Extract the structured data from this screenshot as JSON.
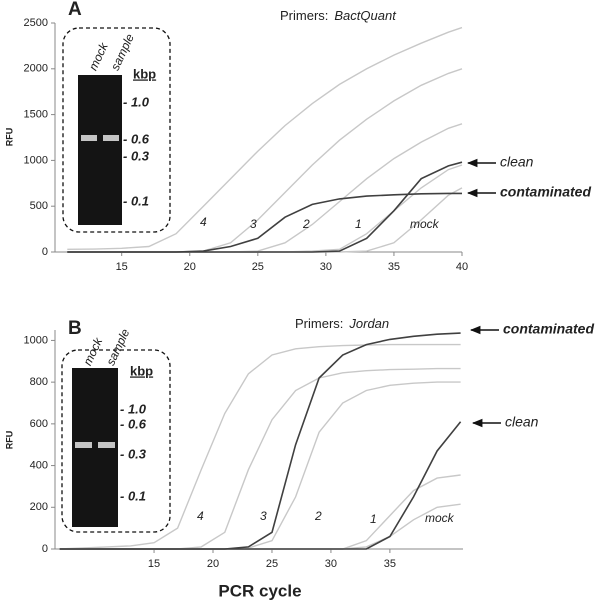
{
  "chart_data": [
    {
      "type": "line",
      "panel": "A",
      "primers_label": "Primers:",
      "primers": "BactQuant",
      "y_label": "RFU",
      "gel_lanes": [
        "mock",
        "sample"
      ],
      "gel_unit": "kbp",
      "gel_markers": [
        "- 1.0",
        "- 0.6",
        "- 0.3",
        "- 0.1"
      ],
      "xlim": [
        10.1,
        40
      ],
      "xticks": [
        15,
        20,
        25,
        30,
        35,
        40
      ],
      "ylim": [
        0,
        2500
      ],
      "yticks": [
        0,
        500,
        1000,
        1500,
        2000,
        2500
      ],
      "x": [
        11,
        13,
        15,
        17,
        19,
        21,
        23,
        25,
        27,
        29,
        31,
        33,
        35,
        37,
        39,
        40
      ],
      "series": [
        {
          "name": "4",
          "color": "#c8c8c8",
          "values": [
            30,
            32,
            40,
            60,
            200,
            500,
            800,
            1100,
            1380,
            1620,
            1830,
            2000,
            2150,
            2280,
            2400,
            2450
          ]
        },
        {
          "name": "3",
          "color": "#c8c8c8",
          "values": [
            0,
            0,
            0,
            0,
            0,
            10,
            100,
            350,
            650,
            950,
            1220,
            1450,
            1650,
            1820,
            1950,
            2000
          ]
        },
        {
          "name": "2",
          "color": "#c8c8c8",
          "values": [
            0,
            0,
            0,
            0,
            0,
            0,
            0,
            10,
            100,
            300,
            550,
            800,
            1020,
            1200,
            1350,
            1400
          ]
        },
        {
          "name": "1",
          "color": "#c8c8c8",
          "values": [
            0,
            0,
            0,
            0,
            0,
            0,
            0,
            0,
            0,
            10,
            30,
            200,
            450,
            700,
            900,
            950
          ]
        },
        {
          "name": "mock",
          "color": "#c8c8c8",
          "values": [
            0,
            0,
            0,
            0,
            0,
            0,
            0,
            0,
            0,
            0,
            0,
            10,
            100,
            350,
            620,
            700
          ]
        },
        {
          "name": "clean",
          "color": "#404040",
          "values": [
            0,
            0,
            0,
            0,
            0,
            0,
            0,
            0,
            0,
            0,
            10,
            150,
            450,
            800,
            940,
            980
          ]
        },
        {
          "name": "contaminated",
          "color": "#404040",
          "values": [
            0,
            0,
            0,
            0,
            0,
            10,
            60,
            150,
            380,
            520,
            580,
            610,
            625,
            635,
            640,
            640
          ]
        }
      ]
    },
    {
      "type": "line",
      "panel": "B",
      "primers_label": "Primers:",
      "primers": "Jordan",
      "y_label": "RFU",
      "x_label": "PCR cycle",
      "gel_lanes": [
        "mock",
        "sample"
      ],
      "gel_unit": "kbp",
      "gel_markers": [
        "- 1.0",
        "- 0.6",
        "- 0.3",
        "- 0.1"
      ],
      "xlim": [
        6.6,
        41.2
      ],
      "xticks": [
        15,
        20,
        25,
        30,
        35
      ],
      "ylim": [
        0,
        1050
      ],
      "yticks": [
        0,
        200,
        400,
        600,
        800,
        1000
      ],
      "x": [
        7,
        9,
        11,
        13,
        15,
        17,
        19,
        21,
        23,
        25,
        27,
        29,
        31,
        33,
        35,
        37,
        39,
        41
      ],
      "series": [
        {
          "name": "4",
          "color": "#c8c8c8",
          "values": [
            0,
            5,
            10,
            15,
            30,
            100,
            380,
            650,
            840,
            930,
            960,
            970,
            975,
            978,
            980,
            980,
            980,
            980
          ]
        },
        {
          "name": "3",
          "color": "#c8c8c8",
          "values": [
            0,
            0,
            0,
            0,
            0,
            0,
            10,
            80,
            380,
            620,
            760,
            820,
            845,
            855,
            860,
            862,
            865,
            865
          ]
        },
        {
          "name": "2",
          "color": "#c8c8c8",
          "values": [
            0,
            0,
            0,
            0,
            0,
            0,
            0,
            0,
            5,
            40,
            250,
            560,
            700,
            760,
            785,
            795,
            800,
            800
          ]
        },
        {
          "name": "1",
          "color": "#c8c8c8",
          "values": [
            0,
            0,
            0,
            0,
            0,
            0,
            0,
            0,
            0,
            0,
            0,
            0,
            0,
            40,
            160,
            280,
            340,
            355
          ]
        },
        {
          "name": "mock",
          "color": "#c8c8c8",
          "values": [
            0,
            0,
            0,
            0,
            0,
            0,
            0,
            0,
            0,
            0,
            0,
            0,
            0,
            10,
            60,
            140,
            200,
            215
          ]
        },
        {
          "name": "contaminated",
          "color": "#404040",
          "values": [
            0,
            0,
            0,
            0,
            0,
            0,
            0,
            0,
            10,
            80,
            500,
            820,
            930,
            980,
            1005,
            1020,
            1030,
            1035
          ]
        },
        {
          "name": "clean",
          "color": "#404040",
          "values": [
            0,
            0,
            0,
            0,
            0,
            0,
            0,
            0,
            0,
            0,
            0,
            0,
            0,
            0,
            60,
            250,
            470,
            610
          ]
        }
      ]
    }
  ]
}
